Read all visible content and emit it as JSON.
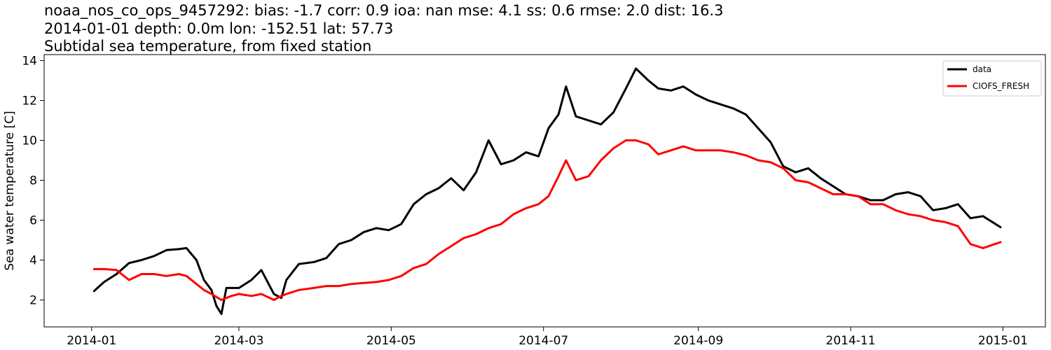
{
  "chart_data": {
    "type": "line",
    "title_lines": [
      "noaa_nos_co_ops_9457292: bias: -1.7  corr: 0.9  ioa: nan  mse: 4.1  ss: 0.6  rmse: 2.0  dist: 16.3",
      "2014-01-01 depth: 0.0m lon: -152.51 lat: 57.73",
      "Subtidal sea temperature, from fixed station"
    ],
    "xlabel": "",
    "ylabel": "Sea water temperature [C]",
    "x_ticks": [
      "2014-01",
      "2014-03",
      "2014-05",
      "2014-07",
      "2014-09",
      "2014-11",
      "2015-01"
    ],
    "y_ticks": [
      2,
      4,
      6,
      8,
      10,
      12,
      14
    ],
    "xlim": [
      "2013-12-13",
      "2015-01-18"
    ],
    "ylim": [
      0.65,
      14.3
    ],
    "grid": false,
    "legend_position": "top-right",
    "series": [
      {
        "name": "data",
        "color": "#000000",
        "x": [
          "2014-01-02",
          "2014-01-06",
          "2014-01-11",
          "2014-01-16",
          "2014-01-21",
          "2014-01-26",
          "2014-01-31",
          "2014-02-05",
          "2014-02-08",
          "2014-02-12",
          "2014-02-15",
          "2014-02-18",
          "2014-02-20",
          "2014-02-22",
          "2014-02-24",
          "2014-03-01",
          "2014-03-06",
          "2014-03-10",
          "2014-03-15",
          "2014-03-18",
          "2014-03-20",
          "2014-03-25",
          "2014-03-31",
          "2014-04-05",
          "2014-04-10",
          "2014-04-15",
          "2014-04-20",
          "2014-04-25",
          "2014-04-30",
          "2014-05-05",
          "2014-05-10",
          "2014-05-15",
          "2014-05-20",
          "2014-05-25",
          "2014-05-30",
          "2014-06-04",
          "2014-06-09",
          "2014-06-14",
          "2014-06-19",
          "2014-06-24",
          "2014-06-29",
          "2014-07-03",
          "2014-07-07",
          "2014-07-10",
          "2014-07-14",
          "2014-07-19",
          "2014-07-24",
          "2014-07-29",
          "2014-08-03",
          "2014-08-07",
          "2014-08-12",
          "2014-08-16",
          "2014-08-21",
          "2014-08-26",
          "2014-08-31",
          "2014-09-05",
          "2014-09-10",
          "2014-09-15",
          "2014-09-20",
          "2014-09-25",
          "2014-09-30",
          "2014-10-05",
          "2014-10-10",
          "2014-10-15",
          "2014-10-20",
          "2014-10-25",
          "2014-10-30",
          "2014-11-04",
          "2014-11-09",
          "2014-11-14",
          "2014-11-19",
          "2014-11-24",
          "2014-11-29",
          "2014-12-04",
          "2014-12-09",
          "2014-12-14",
          "2014-12-19",
          "2014-12-24",
          "2014-12-31"
        ],
        "y": [
          2.45,
          2.9,
          3.3,
          3.85,
          4.0,
          4.2,
          4.5,
          4.55,
          4.6,
          4.0,
          3.0,
          2.5,
          1.7,
          1.3,
          2.6,
          2.6,
          3.0,
          3.5,
          2.3,
          2.1,
          3.0,
          3.8,
          3.9,
          4.1,
          4.8,
          5.0,
          5.4,
          5.6,
          5.5,
          5.8,
          6.8,
          7.3,
          7.6,
          8.1,
          7.5,
          8.4,
          10.0,
          8.8,
          9.0,
          9.4,
          9.2,
          10.6,
          11.3,
          12.7,
          11.2,
          11.0,
          10.8,
          11.4,
          12.6,
          13.6,
          13.0,
          12.6,
          12.5,
          12.7,
          12.3,
          12.0,
          11.8,
          11.6,
          11.3,
          10.6,
          9.9,
          8.7,
          8.4,
          8.6,
          8.1,
          7.7,
          7.3,
          7.2,
          7.0,
          7.0,
          7.3,
          7.4,
          7.2,
          6.5,
          6.6,
          6.8,
          6.1,
          6.2,
          5.65
        ]
      },
      {
        "name": "CIOFS_FRESH",
        "color": "#ff0000",
        "x": [
          "2014-01-02",
          "2014-01-06",
          "2014-01-11",
          "2014-01-16",
          "2014-01-21",
          "2014-01-26",
          "2014-01-31",
          "2014-02-05",
          "2014-02-08",
          "2014-02-12",
          "2014-02-15",
          "2014-02-18",
          "2014-02-22",
          "2014-02-26",
          "2014-03-01",
          "2014-03-06",
          "2014-03-10",
          "2014-03-15",
          "2014-03-18",
          "2014-03-20",
          "2014-03-25",
          "2014-03-31",
          "2014-04-05",
          "2014-04-10",
          "2014-04-15",
          "2014-04-20",
          "2014-04-25",
          "2014-04-30",
          "2014-05-05",
          "2014-05-10",
          "2014-05-15",
          "2014-05-20",
          "2014-05-25",
          "2014-05-30",
          "2014-06-04",
          "2014-06-09",
          "2014-06-14",
          "2014-06-19",
          "2014-06-24",
          "2014-06-29",
          "2014-07-03",
          "2014-07-07",
          "2014-07-10",
          "2014-07-14",
          "2014-07-19",
          "2014-07-24",
          "2014-07-29",
          "2014-08-03",
          "2014-08-07",
          "2014-08-12",
          "2014-08-16",
          "2014-08-21",
          "2014-08-26",
          "2014-08-31",
          "2014-09-05",
          "2014-09-10",
          "2014-09-15",
          "2014-09-20",
          "2014-09-25",
          "2014-09-30",
          "2014-10-05",
          "2014-10-10",
          "2014-10-15",
          "2014-10-20",
          "2014-10-25",
          "2014-10-30",
          "2014-11-04",
          "2014-11-09",
          "2014-11-14",
          "2014-11-19",
          "2014-11-24",
          "2014-11-29",
          "2014-12-04",
          "2014-12-09",
          "2014-12-14",
          "2014-12-19",
          "2014-12-24",
          "2014-12-31"
        ],
        "y": [
          3.55,
          3.55,
          3.5,
          3.0,
          3.3,
          3.3,
          3.2,
          3.3,
          3.2,
          2.8,
          2.5,
          2.3,
          2.0,
          2.2,
          2.3,
          2.2,
          2.3,
          2.0,
          2.2,
          2.3,
          2.5,
          2.6,
          2.7,
          2.7,
          2.8,
          2.85,
          2.9,
          3.0,
          3.2,
          3.6,
          3.8,
          4.3,
          4.7,
          5.1,
          5.3,
          5.6,
          5.8,
          6.3,
          6.6,
          6.8,
          7.2,
          8.2,
          9.0,
          8.0,
          8.2,
          9.0,
          9.6,
          10.0,
          10.0,
          9.8,
          9.3,
          9.5,
          9.7,
          9.5,
          9.5,
          9.5,
          9.4,
          9.25,
          9.0,
          8.9,
          8.6,
          8.0,
          7.9,
          7.6,
          7.3,
          7.3,
          7.2,
          6.8,
          6.8,
          6.5,
          6.3,
          6.2,
          6.0,
          5.9,
          5.7,
          4.8,
          4.6,
          4.9
        ]
      }
    ]
  }
}
